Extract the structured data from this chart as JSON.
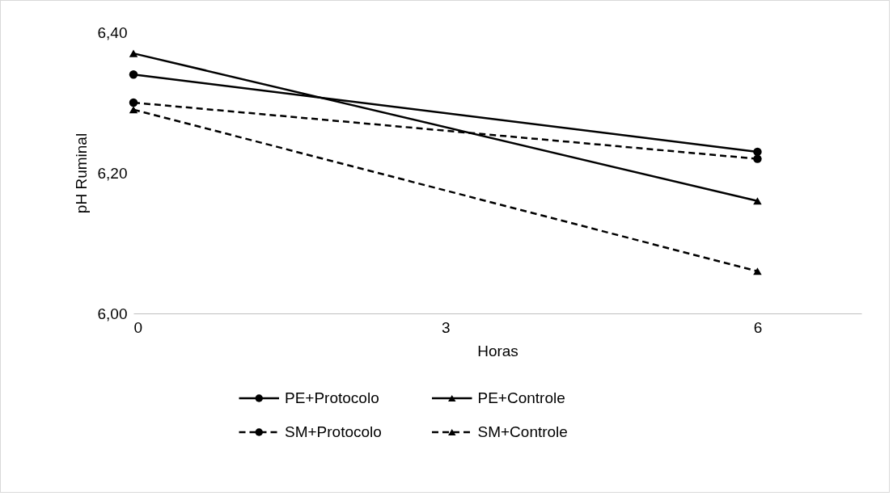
{
  "chart_data": {
    "type": "line",
    "xlabel": "Horas",
    "ylabel": "pH Ruminal",
    "x": [
      0,
      6
    ],
    "xlim": [
      0,
      7
    ],
    "xticks": [
      0,
      3,
      6
    ],
    "ylim": [
      6.0,
      6.4
    ],
    "yticks": [
      {
        "value": 6.0,
        "label": "6,00"
      },
      {
        "value": 6.2,
        "label": "6,20"
      },
      {
        "value": 6.4,
        "label": "6,40"
      }
    ],
    "grid": false,
    "legend": "bottom",
    "series": [
      {
        "name": "PE+Protocolo",
        "color": "#000000",
        "values": [
          6.34,
          6.23
        ],
        "marker": "circle",
        "line_style": "solid"
      },
      {
        "name": "PE+Controle",
        "color": "#000000",
        "values": [
          6.37,
          6.16
        ],
        "marker": "triangle",
        "line_style": "solid"
      },
      {
        "name": "SM+Protocolo",
        "color": "#000000",
        "values": [
          6.3,
          6.22
        ],
        "marker": "circle",
        "line_style": "dashed"
      },
      {
        "name": "SM+Controle",
        "color": "#000000",
        "values": [
          6.29,
          6.06
        ],
        "marker": "triangle",
        "line_style": "dashed"
      }
    ]
  }
}
